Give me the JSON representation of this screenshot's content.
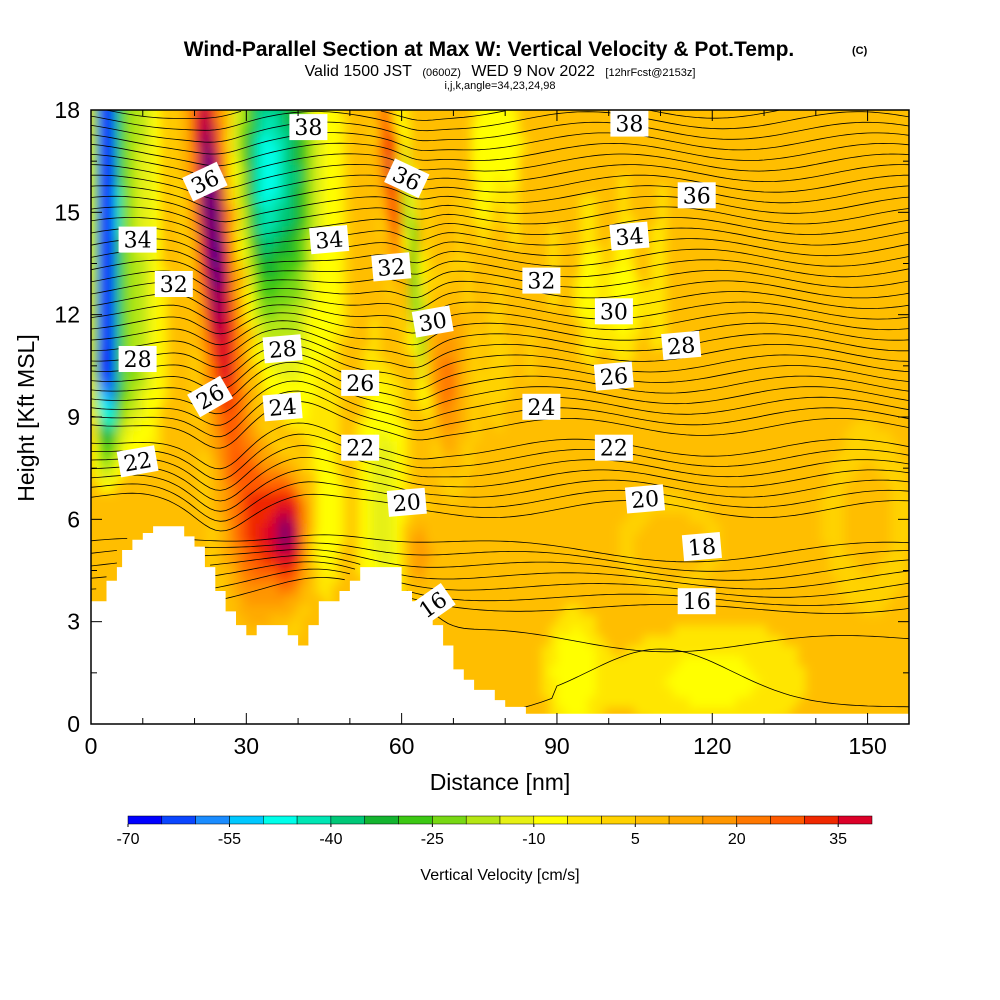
{
  "header": {
    "title": "Wind-Parallel Section at Max W: Vertical Velocity & Pot.Temp.",
    "title_mark": "(C)",
    "valid_prefix": "Valid 1500 JST",
    "valid_utc": "(0600Z)",
    "valid_date": "WED 9 Nov 2022",
    "forecast": "[12hrFcst@2153z]",
    "grid_info": "i,j,k,angle=34,23,24,98"
  },
  "chart_data": {
    "type": "heatmap",
    "title": "Wind-Parallel Section at Max W: Vertical Velocity & Pot.Temp.",
    "xlabel": "Distance [nm]",
    "ylabel": "Height [Kft MSL]",
    "xlim": [
      0,
      158
    ],
    "ylim": [
      0,
      18
    ],
    "xticks": [
      0,
      30,
      60,
      90,
      120,
      150
    ],
    "yticks": [
      0,
      3,
      6,
      9,
      12,
      15,
      18
    ],
    "colorbar": {
      "label": "Vertical Velocity [cm/s]",
      "ticks": [
        -70,
        -55,
        -40,
        -25,
        -10,
        5,
        20,
        35
      ],
      "min": -70,
      "max": 40,
      "step": 5,
      "colors": [
        "#0000ff",
        "#0a46ff",
        "#1a8cff",
        "#00c8ff",
        "#00ffea",
        "#00e6b4",
        "#00c878",
        "#14b430",
        "#3cc814",
        "#78d814",
        "#b4e614",
        "#e6f014",
        "#ffff00",
        "#ffe600",
        "#ffd200",
        "#ffbe00",
        "#ffaa00",
        "#ff9600",
        "#ff7800",
        "#ff5a00",
        "#f02800",
        "#dc0028",
        "#b4004a",
        "#8c0064",
        "#5a0082"
      ]
    },
    "potential_temperature_contours": {
      "unit": "C",
      "levels_labeled": [
        16,
        18,
        20,
        22,
        24,
        26,
        28,
        30,
        32,
        34,
        36,
        38
      ],
      "labels": [
        {
          "value": "38",
          "x": 42,
          "y": 17.5,
          "angle": 0
        },
        {
          "value": "38",
          "x": 104,
          "y": 17.6,
          "angle": 0
        },
        {
          "value": "36",
          "x": 22,
          "y": 15.9,
          "angle": -25
        },
        {
          "value": "36",
          "x": 61,
          "y": 16.0,
          "angle": 25
        },
        {
          "value": "36",
          "x": 117,
          "y": 15.5,
          "angle": 0
        },
        {
          "value": "34",
          "x": 9,
          "y": 14.2,
          "angle": 0
        },
        {
          "value": "34",
          "x": 46,
          "y": 14.2,
          "angle": -5
        },
        {
          "value": "34",
          "x": 104,
          "y": 14.3,
          "angle": -5
        },
        {
          "value": "32",
          "x": 16,
          "y": 12.9,
          "angle": 0
        },
        {
          "value": "32",
          "x": 58,
          "y": 13.4,
          "angle": -5
        },
        {
          "value": "32",
          "x": 87,
          "y": 13.0,
          "angle": 0
        },
        {
          "value": "30",
          "x": 66,
          "y": 11.8,
          "angle": -10
        },
        {
          "value": "30",
          "x": 101,
          "y": 12.1,
          "angle": 0
        },
        {
          "value": "28",
          "x": 9,
          "y": 10.7,
          "angle": 0
        },
        {
          "value": "28",
          "x": 37,
          "y": 11.0,
          "angle": -5
        },
        {
          "value": "28",
          "x": 114,
          "y": 11.1,
          "angle": -5
        },
        {
          "value": "26",
          "x": 23,
          "y": 9.6,
          "angle": -30
        },
        {
          "value": "26",
          "x": 52,
          "y": 10.0,
          "angle": 0
        },
        {
          "value": "26",
          "x": 101,
          "y": 10.2,
          "angle": -5
        },
        {
          "value": "24",
          "x": 37,
          "y": 9.3,
          "angle": -5
        },
        {
          "value": "24",
          "x": 87,
          "y": 9.3,
          "angle": 0
        },
        {
          "value": "22",
          "x": 9,
          "y": 7.7,
          "angle": -10
        },
        {
          "value": "22",
          "x": 52,
          "y": 8.1,
          "angle": 0
        },
        {
          "value": "22",
          "x": 101,
          "y": 8.1,
          "angle": 0
        },
        {
          "value": "20",
          "x": 61,
          "y": 6.5,
          "angle": -5
        },
        {
          "value": "20",
          "x": 107,
          "y": 6.6,
          "angle": -5
        },
        {
          "value": "18",
          "x": 118,
          "y": 5.2,
          "angle": -5
        },
        {
          "value": "16",
          "x": 66,
          "y": 3.5,
          "angle": -35
        },
        {
          "value": "16",
          "x": 117,
          "y": 3.6,
          "angle": 0
        }
      ]
    },
    "terrain_kft": {
      "x": [
        0,
        3,
        5,
        6,
        8,
        10,
        12,
        14,
        18,
        20,
        22,
        24,
        26,
        28,
        30,
        32,
        34,
        38,
        40,
        42,
        44,
        48,
        50,
        52,
        54,
        58,
        60,
        62,
        64,
        66,
        68,
        70,
        72,
        74,
        78,
        80,
        84,
        86,
        158
      ],
      "height": [
        3.6,
        4.2,
        4.6,
        5.1,
        5.4,
        5.6,
        5.8,
        5.8,
        5.5,
        5.2,
        4.6,
        3.9,
        3.3,
        2.9,
        2.6,
        2.9,
        2.9,
        2.6,
        2.3,
        2.9,
        3.6,
        3.9,
        4.2,
        4.6,
        4.6,
        4.6,
        3.9,
        3.6,
        3.3,
        2.9,
        2.3,
        1.6,
        1.3,
        1.0,
        0.7,
        0.5,
        0.3,
        0.3,
        0.3
      ]
    }
  }
}
